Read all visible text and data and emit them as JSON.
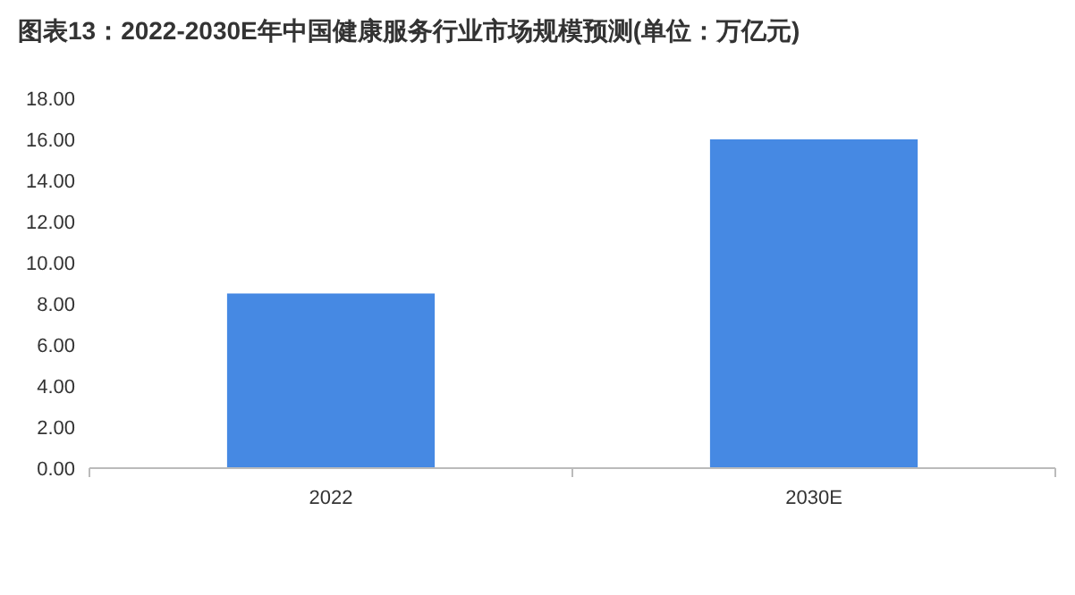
{
  "chart_data": {
    "type": "bar",
    "title": "图表13：2022-2030E年中国健康服务行业市场规模预测(单位：万亿元)",
    "categories": [
      "2022",
      "2030E"
    ],
    "values": [
      8.5,
      16.0
    ],
    "color": "#4689e3",
    "ylim": [
      0,
      18
    ],
    "yticks": [
      {
        "value": 0,
        "label": "0.00"
      },
      {
        "value": 2,
        "label": "2.00"
      },
      {
        "value": 4,
        "label": "4.00"
      },
      {
        "value": 6,
        "label": "6.00"
      },
      {
        "value": 8,
        "label": "8.00"
      },
      {
        "value": 10,
        "label": "10.00"
      },
      {
        "value": 12,
        "label": "12.00"
      },
      {
        "value": 14,
        "label": "14.00"
      },
      {
        "value": 16,
        "label": "16.00"
      },
      {
        "value": 18,
        "label": "18.00"
      }
    ],
    "grid": false
  }
}
